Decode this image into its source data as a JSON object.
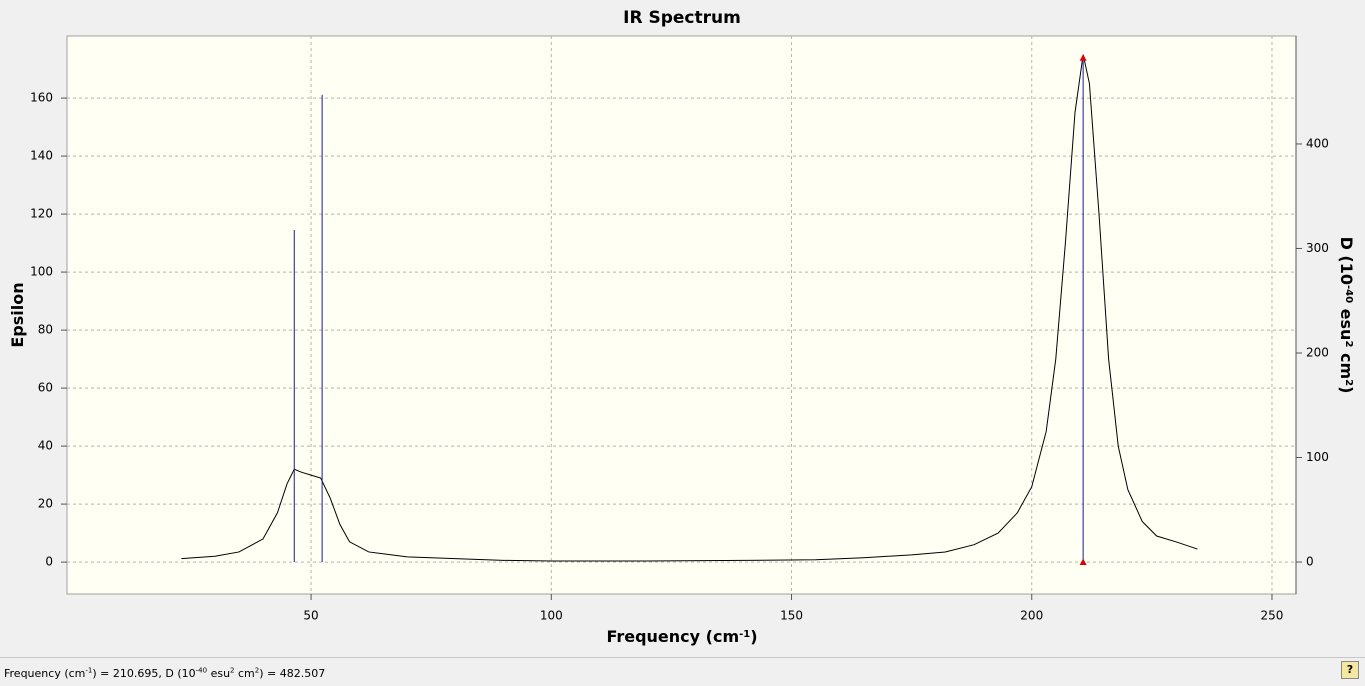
{
  "chart_data": {
    "type": "spectrum",
    "title": "IR Spectrum",
    "x_label": [
      "Frequency (cm",
      "-1",
      ")"
    ],
    "y_label": "Epsilon",
    "y2_label": [
      "D (10",
      "-40",
      " esu",
      "2",
      " cm",
      "2",
      ")"
    ],
    "xlim": [
      -0.8,
      255
    ],
    "xticks": [
      50,
      100,
      150,
      200,
      250
    ],
    "ylim": [
      -11,
      181.4
    ],
    "yticks": [
      0,
      20,
      40,
      60,
      80,
      100,
      120,
      140,
      160
    ],
    "y2lim": [
      -30.6,
      503.3
    ],
    "y2ticks": [
      0,
      100,
      200,
      300,
      400
    ],
    "grid": true,
    "series": [
      {
        "type": "line",
        "color": "#000000",
        "x": [
          23,
          30,
          35,
          40,
          43,
          45,
          46.5,
          48,
          50,
          52,
          54,
          56,
          58,
          62,
          70,
          80,
          90,
          100,
          120,
          140,
          155,
          165,
          175,
          182,
          188,
          193,
          197,
          200,
          203,
          205,
          207,
          209,
          210.7,
          212,
          214,
          216,
          218,
          220,
          223,
          226,
          230,
          234.5
        ],
        "values": [
          1.2,
          2,
          3.5,
          8,
          17,
          27,
          32,
          31,
          30,
          29,
          22,
          13,
          7,
          3.5,
          1.8,
          1.2,
          0.6,
          0.4,
          0.4,
          0.6,
          0.8,
          1.5,
          2.5,
          3.5,
          6,
          10,
          17,
          26,
          45,
          70,
          110,
          155,
          175,
          165,
          120,
          70,
          40,
          25,
          14,
          9,
          7,
          4.5
        ]
      },
      {
        "type": "stick",
        "axis": "y2",
        "color": "#1a1aa0",
        "x": [
          46.5,
          52.3,
          210.695
        ],
        "values": [
          317.7,
          447,
          482.507
        ]
      }
    ],
    "selected_stick": 2,
    "selected_color": "#e00000"
  },
  "status": [
    "Frequency (cm",
    "-1",
    ") = ",
    ", D (10",
    "-40",
    " esu",
    "2",
    " cm",
    "2",
    ") = "
  ]
}
